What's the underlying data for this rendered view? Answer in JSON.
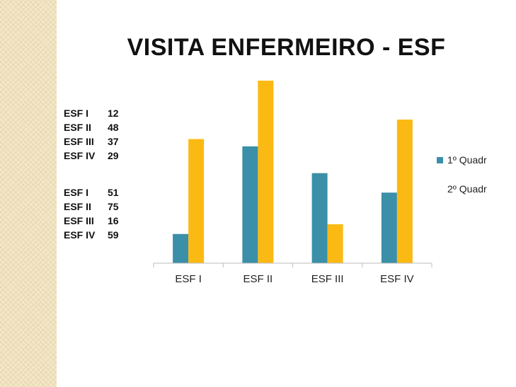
{
  "title": "VISITA ENFERMEIRO - ESF",
  "side_table": {
    "quadr1": [
      {
        "label": "ESF I",
        "value": "12"
      },
      {
        "label": "ESF II",
        "value": "48"
      },
      {
        "label": "ESF III",
        "value": "37"
      },
      {
        "label": "ESF IV",
        "value": "29"
      }
    ],
    "quadr2": [
      {
        "label": "ESF I",
        "value": "51"
      },
      {
        "label": "ESF II",
        "value": "75"
      },
      {
        "label": "ESF III",
        "value": "16"
      },
      {
        "label": "ESF IV",
        "value": "59"
      }
    ]
  },
  "chart_data": {
    "type": "bar",
    "title": "VISITA ENFERMEIRO - ESF",
    "categories": [
      "ESF I",
      "ESF II",
      "ESF III",
      "ESF IV"
    ],
    "series": [
      {
        "name": "1º Quadr",
        "values": [
          12,
          48,
          37,
          29
        ],
        "color": "#3b8fa8"
      },
      {
        "name": "2º Quadr",
        "values": [
          51,
          75,
          16,
          59
        ],
        "color": "#fbb913"
      }
    ],
    "ylim": [
      0,
      75
    ],
    "grid": false,
    "legend_position": "right"
  },
  "colors": {
    "series1": "#3b8fa8",
    "series2": "#fbb913",
    "axis": "#bdbdbd"
  }
}
